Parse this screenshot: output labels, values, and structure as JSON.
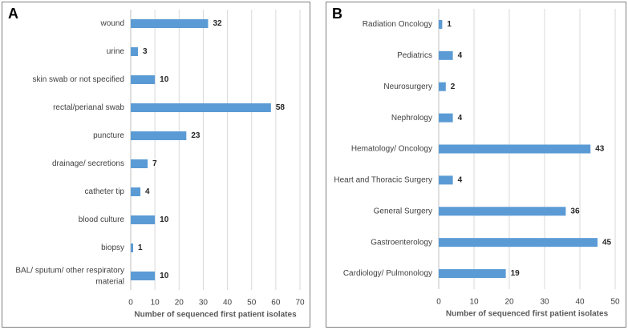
{
  "chart_data": [
    {
      "type": "bar",
      "orientation": "horizontal",
      "panel": "A",
      "categories": [
        "wound",
        "urine",
        "skin swab or not specified",
        "rectal/perianal swab",
        "puncture",
        "drainage/ secretions",
        "catheter tip",
        "blood culture",
        "biopsy",
        "BAL/ sputum/ other respiratory material"
      ],
      "values": [
        32,
        3,
        10,
        58,
        23,
        7,
        4,
        10,
        1,
        10
      ],
      "color": "#5b9bd5",
      "xlabel": "Number of sequenced first patient isolates",
      "xlim": [
        0,
        70
      ],
      "xticks": [
        0,
        10,
        20,
        30,
        40,
        50,
        60,
        70
      ],
      "grid": true
    },
    {
      "type": "bar",
      "orientation": "horizontal",
      "panel": "B",
      "categories": [
        "Radiation Oncology",
        "Pediatrics",
        "Neurosurgery",
        "Nephrology",
        "Hematology/ Oncology",
        "Heart and Thoracic Surgery",
        "General Surgery",
        "Gastroenterology",
        "Cardiology/ Pulmonology"
      ],
      "values": [
        1,
        4,
        2,
        4,
        43,
        4,
        36,
        45,
        19
      ],
      "color": "#5b9bd5",
      "xlabel": "Number of sequenced first patient isolates",
      "xlim": [
        0,
        50
      ],
      "xticks": [
        0,
        10,
        20,
        30,
        40,
        50
      ],
      "grid": true
    }
  ]
}
